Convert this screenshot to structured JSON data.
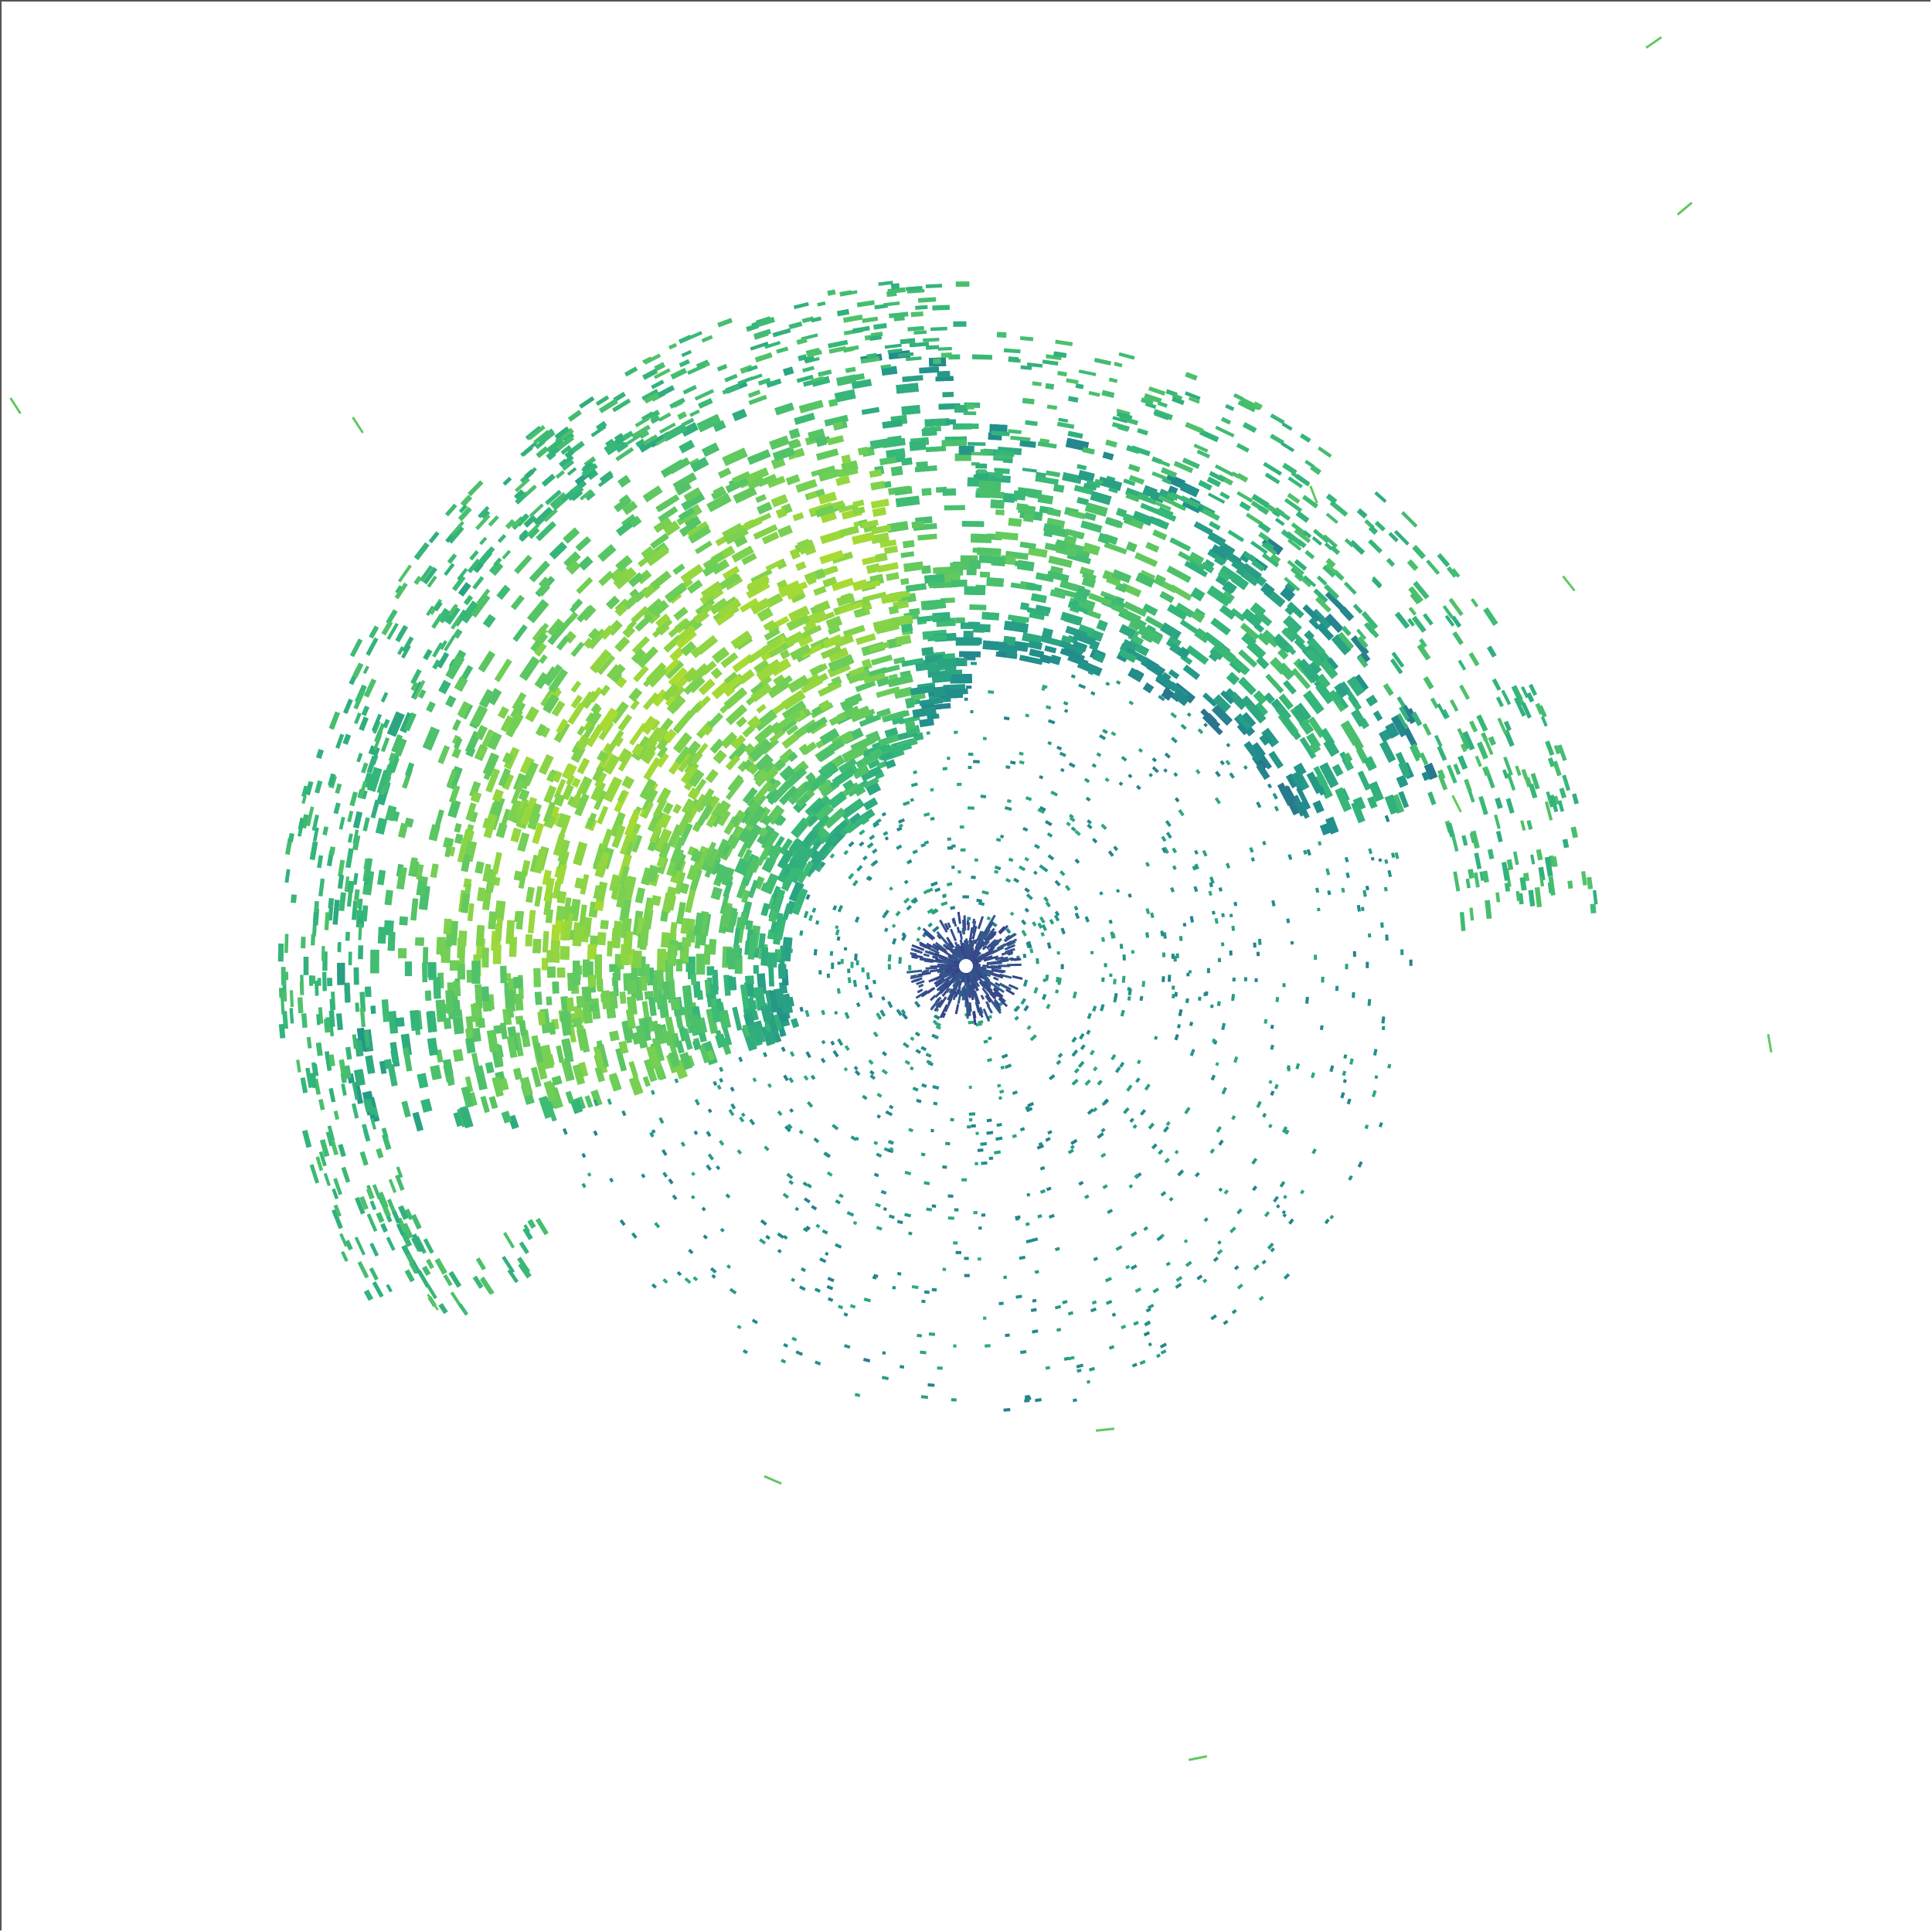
{
  "image": {
    "subject": "radar-reflectivity-sweep",
    "colormap": [
      "#3b3a8a",
      "#2c6f8e",
      "#21918c",
      "#35b779",
      "#6ece58",
      "#b5de2b"
    ],
    "colors": {
      "background": "#ffffff",
      "center_echo": "#3b3a8a",
      "sparse_returns": "#21918c",
      "weak_echo": "#35b779",
      "moderate_echo": "#6ece58",
      "strong_echo": "#b5de2b",
      "frame": "#555555"
    }
  }
}
